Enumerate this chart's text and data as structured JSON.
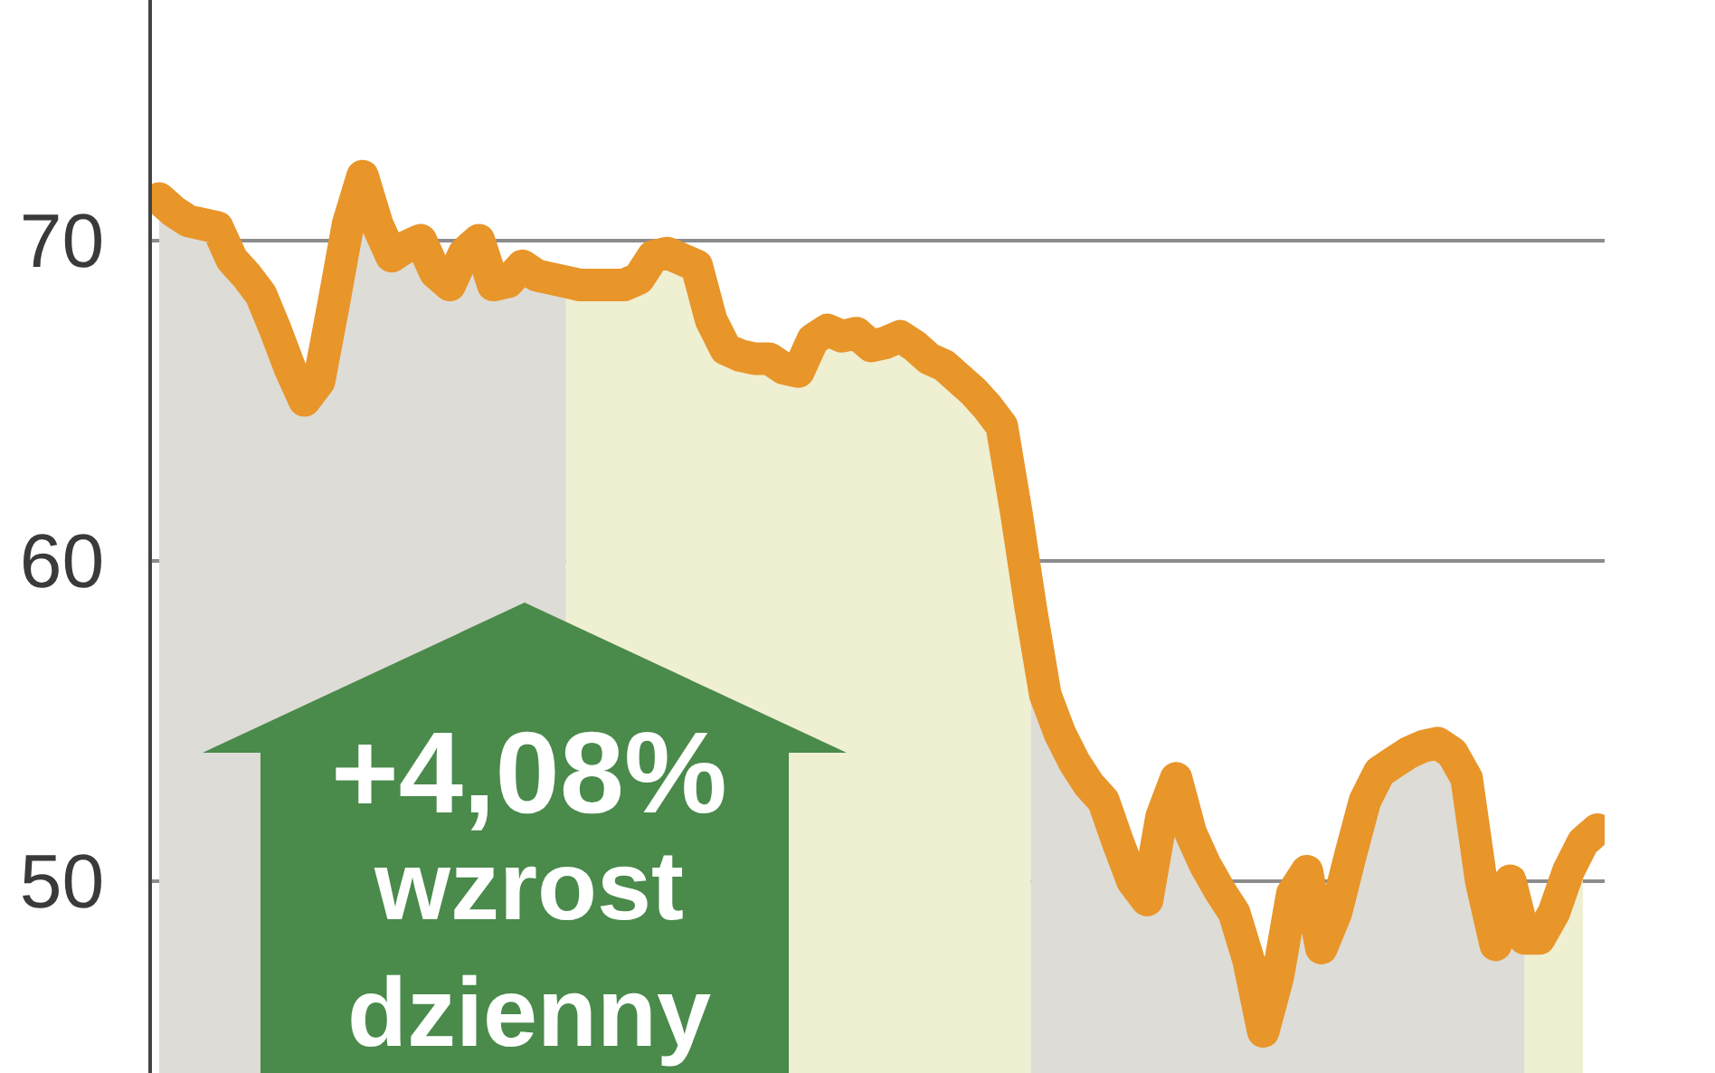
{
  "chart_data": {
    "type": "line",
    "categories": [
      null,
      null,
      null,
      null,
      null,
      null,
      null,
      null,
      null,
      null,
      null,
      null,
      null,
      null,
      null,
      null,
      null,
      null,
      null,
      null,
      null,
      null,
      null,
      null,
      null,
      null,
      null,
      null,
      null,
      null,
      null,
      null,
      null,
      null,
      null,
      null,
      null,
      null,
      null,
      null,
      null,
      null,
      null,
      null,
      null,
      null,
      null,
      null,
      null,
      null,
      null,
      null,
      null,
      null,
      null,
      null,
      null,
      null,
      null,
      null,
      null,
      null,
      null,
      null,
      null,
      null,
      null,
      null,
      null,
      null,
      null,
      null,
      null,
      null,
      null,
      null,
      null,
      null,
      null,
      null,
      null,
      null,
      null,
      null,
      null,
      null,
      null,
      null,
      null,
      null,
      null,
      null,
      null,
      null,
      null,
      null,
      null,
      null,
      null,
      null
    ],
    "series": [
      {
        "type": "area",
        "color": "#dddcd6",
        "values": [
          71.3,
          70.9,
          70.6,
          70.5,
          70.4,
          69.4,
          68.9,
          68.3,
          67.2,
          66.0,
          65.0,
          65.6,
          68.0,
          70.5,
          72.0,
          70.5,
          69.5,
          69.8,
          70.0,
          69.0,
          68.6,
          69.6,
          70.0,
          68.6,
          68.7,
          69.2,
          68.9,
          68.8,
          68.7,
          null,
          null,
          null,
          null,
          null,
          null,
          null,
          null,
          null,
          null,
          null,
          null,
          null,
          null,
          null,
          null,
          null,
          null,
          null,
          null,
          null,
          null,
          null,
          null,
          null,
          null,
          null,
          null,
          null,
          null,
          null,
          null,
          null,
          null,
          null,
          null,
          null,
          null,
          null,
          null,
          null,
          null,
          null,
          null,
          null,
          null,
          null,
          null,
          null,
          null,
          null,
          null,
          null,
          null,
          null,
          null,
          null,
          null,
          null,
          null,
          null,
          null,
          null,
          null,
          null,
          null,
          null,
          null,
          null,
          null,
          null
        ]
      },
      {
        "type": "area",
        "color": "#efefd2",
        "values": [
          null,
          null,
          null,
          null,
          null,
          null,
          null,
          null,
          null,
          null,
          null,
          null,
          null,
          null,
          null,
          null,
          null,
          null,
          null,
          null,
          null,
          null,
          null,
          null,
          null,
          null,
          null,
          null,
          68.7,
          68.6,
          68.6,
          68.6,
          68.6,
          68.8,
          69.5,
          69.6,
          69.4,
          69.2,
          67.5,
          66.6,
          66.4,
          66.3,
          66.3,
          66.0,
          65.9,
          66.9,
          67.2,
          67.0,
          67.1,
          66.7,
          66.8,
          67.0,
          66.7,
          66.3,
          66.1,
          65.7,
          65.3,
          64.8,
          64.2,
          61.5,
          58.5,
          null,
          null,
          null,
          null,
          null,
          null,
          null,
          null,
          null,
          null,
          null,
          null,
          null,
          null,
          null,
          null,
          null,
          null,
          null,
          null,
          null,
          null,
          null,
          null,
          null,
          null,
          null,
          null,
          null,
          null,
          null,
          null,
          null,
          null,
          null,
          null,
          null,
          null,
          null
        ]
      },
      {
        "type": "area",
        "color": "#dddcd6",
        "values": [
          null,
          null,
          null,
          null,
          null,
          null,
          null,
          null,
          null,
          null,
          null,
          null,
          null,
          null,
          null,
          null,
          null,
          null,
          null,
          null,
          null,
          null,
          null,
          null,
          null,
          null,
          null,
          null,
          null,
          null,
          null,
          null,
          null,
          null,
          null,
          null,
          null,
          null,
          null,
          null,
          null,
          null,
          null,
          null,
          null,
          null,
          null,
          null,
          null,
          null,
          null,
          null,
          null,
          null,
          null,
          null,
          null,
          null,
          null,
          null,
          58.5,
          55.8,
          54.6,
          53.7,
          53.0,
          52.5,
          51.2,
          50.0,
          49.4,
          52.0,
          53.2,
          51.5,
          50.5,
          49.7,
          49.0,
          47.5,
          45.3,
          47.0,
          49.6,
          50.3,
          47.9,
          49.0,
          50.8,
          52.5,
          53.4,
          53.7,
          54.0,
          54.2,
          54.3,
          54.0,
          53.2,
          50.0,
          48.0,
          50.0,
          48.2,
          null,
          null,
          null,
          null,
          null
        ]
      },
      {
        "type": "area",
        "color": "#efefd2",
        "values": [
          null,
          null,
          null,
          null,
          null,
          null,
          null,
          null,
          null,
          null,
          null,
          null,
          null,
          null,
          null,
          null,
          null,
          null,
          null,
          null,
          null,
          null,
          null,
          null,
          null,
          null,
          null,
          null,
          null,
          null,
          null,
          null,
          null,
          null,
          null,
          null,
          null,
          null,
          null,
          null,
          null,
          null,
          null,
          null,
          null,
          null,
          null,
          null,
          null,
          null,
          null,
          null,
          null,
          null,
          null,
          null,
          null,
          null,
          null,
          null,
          null,
          null,
          null,
          null,
          null,
          null,
          null,
          null,
          null,
          null,
          null,
          null,
          null,
          null,
          null,
          null,
          null,
          null,
          null,
          null,
          null,
          null,
          null,
          null,
          null,
          null,
          null,
          null,
          null,
          null,
          null,
          null,
          null,
          null,
          48.2,
          48.2,
          49.0,
          50.3,
          51.2,
          null
        ]
      },
      {
        "color": "#e8952a",
        "values": [
          71.3,
          70.9,
          70.6,
          70.5,
          70.4,
          69.4,
          68.9,
          68.3,
          67.2,
          66.0,
          65.0,
          65.6,
          68.0,
          70.5,
          72.0,
          70.5,
          69.5,
          69.8,
          70.0,
          69.0,
          68.6,
          69.6,
          70.0,
          68.6,
          68.7,
          69.2,
          68.9,
          68.8,
          68.7,
          68.6,
          68.6,
          68.6,
          68.6,
          68.8,
          69.5,
          69.6,
          69.4,
          69.2,
          67.5,
          66.6,
          66.4,
          66.3,
          66.3,
          66.0,
          65.9,
          66.9,
          67.2,
          67.0,
          67.1,
          66.7,
          66.8,
          67.0,
          66.7,
          66.3,
          66.1,
          65.7,
          65.3,
          64.8,
          64.2,
          61.5,
          58.5,
          55.8,
          54.6,
          53.7,
          53.0,
          52.5,
          51.2,
          50.0,
          49.4,
          52.0,
          53.2,
          51.5,
          50.5,
          49.7,
          49.0,
          47.5,
          45.3,
          47.0,
          49.6,
          50.3,
          47.9,
          49.0,
          50.8,
          52.5,
          53.4,
          53.7,
          54.0,
          54.2,
          54.3,
          54.0,
          53.2,
          50.0,
          48.0,
          50.0,
          48.2,
          48.2,
          49.0,
          50.3,
          51.2,
          51.6
        ]
      }
    ],
    "ylim": [
      44,
      77.5
    ],
    "yticks": [
      50,
      60,
      70
    ],
    "grid": "y",
    "tick_labels": "y",
    "annotations": [
      "+4,08%",
      "wzrost dzienny"
    ]
  }
}
